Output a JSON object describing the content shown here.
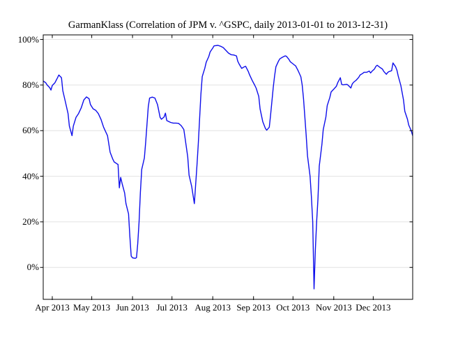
{
  "chart_data": {
    "type": "line",
    "title": "GarmanKlass (Correlation of JPM v. ^GSPC, daily 2013-01-01 to 2013-12-31)",
    "xlabel": "",
    "ylabel": "",
    "ylim": [
      -14,
      102
    ],
    "xlim": [
      "2013-03-25",
      "2013-12-31"
    ],
    "grid": "horizontal",
    "legend": "none",
    "colors": {
      "line": "#0d0deb",
      "grid": "#e2e2e2",
      "frame": "#000000",
      "text": "#000000",
      "background": "#ffffff"
    },
    "y_ticks": [
      {
        "label": "0%",
        "value": 0
      },
      {
        "label": "20%",
        "value": 20
      },
      {
        "label": "40%",
        "value": 40
      },
      {
        "label": "60%",
        "value": 60
      },
      {
        "label": "80%",
        "value": 80
      },
      {
        "label": "100%",
        "value": 100
      }
    ],
    "x_ticks": [
      {
        "label": "Apr 2013",
        "date": "2013-04-01"
      },
      {
        "label": "May 2013",
        "date": "2013-05-01"
      },
      {
        "label": "Jun 2013",
        "date": "2013-06-01"
      },
      {
        "label": "Jul 2013",
        "date": "2013-07-01"
      },
      {
        "label": "Aug 2013",
        "date": "2013-08-01"
      },
      {
        "label": "Sep 2013",
        "date": "2013-09-01"
      },
      {
        "label": "Oct 2013",
        "date": "2013-10-01"
      },
      {
        "label": "Nov 2013",
        "date": "2013-11-01"
      },
      {
        "label": "Dec 2013",
        "date": "2013-12-01"
      }
    ],
    "points": [
      [
        "2013-03-25",
        81.8
      ],
      [
        "2013-03-27",
        81.0
      ],
      [
        "2013-03-28",
        80.1
      ],
      [
        "2013-03-30",
        78.9
      ],
      [
        "2013-03-31",
        77.8
      ],
      [
        "2013-04-01",
        79.8
      ],
      [
        "2013-04-03",
        81.0
      ],
      [
        "2013-04-05",
        83.2
      ],
      [
        "2013-04-06",
        84.4
      ],
      [
        "2013-04-08",
        83.2
      ],
      [
        "2013-04-09",
        77.5
      ],
      [
        "2013-04-11",
        72.5
      ],
      [
        "2013-04-13",
        67.5
      ],
      [
        "2013-04-14",
        62.0
      ],
      [
        "2013-04-16",
        57.8
      ],
      [
        "2013-04-17",
        62.0
      ],
      [
        "2013-04-19",
        65.8
      ],
      [
        "2013-04-21",
        67.5
      ],
      [
        "2013-04-23",
        70.0
      ],
      [
        "2013-04-25",
        73.5
      ],
      [
        "2013-04-27",
        74.8
      ],
      [
        "2013-04-29",
        74.0
      ],
      [
        "2013-04-30",
        71.5
      ],
      [
        "2013-05-02",
        69.6
      ],
      [
        "2013-05-04",
        68.9
      ],
      [
        "2013-05-06",
        67.5
      ],
      [
        "2013-05-08",
        65.0
      ],
      [
        "2013-05-10",
        61.5
      ],
      [
        "2013-05-13",
        57.8
      ],
      [
        "2013-05-15",
        50.5
      ],
      [
        "2013-05-17",
        47.5
      ],
      [
        "2013-05-18",
        46.3
      ],
      [
        "2013-05-20",
        45.5
      ],
      [
        "2013-05-21",
        45.2
      ],
      [
        "2013-05-22",
        34.9
      ],
      [
        "2013-05-23",
        39.5
      ],
      [
        "2013-05-24",
        37.0
      ],
      [
        "2013-05-26",
        32.6
      ],
      [
        "2013-05-27",
        28.0
      ],
      [
        "2013-05-29",
        23.5
      ],
      [
        "2013-05-30",
        13.5
      ],
      [
        "2013-05-31",
        5.0
      ],
      [
        "2013-06-01",
        4.2
      ],
      [
        "2013-06-03",
        4.0
      ],
      [
        "2013-06-04",
        4.3
      ],
      [
        "2013-06-05",
        10.5
      ],
      [
        "2013-06-06",
        20.0
      ],
      [
        "2013-06-07",
        33.0
      ],
      [
        "2013-06-08",
        43.0
      ],
      [
        "2013-06-09",
        45.5
      ],
      [
        "2013-06-10",
        48.0
      ],
      [
        "2013-06-11",
        55.0
      ],
      [
        "2013-06-12",
        63.0
      ],
      [
        "2013-06-13",
        70.5
      ],
      [
        "2013-06-14",
        74.3
      ],
      [
        "2013-06-16",
        74.7
      ],
      [
        "2013-06-18",
        74.3
      ],
      [
        "2013-06-20",
        71.5
      ],
      [
        "2013-06-22",
        65.8
      ],
      [
        "2013-06-23",
        65.0
      ],
      [
        "2013-06-25",
        66.0
      ],
      [
        "2013-06-26",
        67.7
      ],
      [
        "2013-06-27",
        64.4
      ],
      [
        "2013-06-30",
        63.6
      ],
      [
        "2013-07-02",
        63.3
      ],
      [
        "2013-07-04",
        63.3
      ],
      [
        "2013-07-06",
        63.2
      ],
      [
        "2013-07-08",
        62.2
      ],
      [
        "2013-07-10",
        60.5
      ],
      [
        "2013-07-11",
        56.5
      ],
      [
        "2013-07-13",
        48.5
      ],
      [
        "2013-07-14",
        40.5
      ],
      [
        "2013-07-16",
        35.5
      ],
      [
        "2013-07-18",
        28.0
      ],
      [
        "2013-07-19",
        36.5
      ],
      [
        "2013-07-20",
        45.0
      ],
      [
        "2013-07-21",
        54.0
      ],
      [
        "2013-07-22",
        65.0
      ],
      [
        "2013-07-23",
        76.0
      ],
      [
        "2013-07-24",
        83.7
      ],
      [
        "2013-07-26",
        87.5
      ],
      [
        "2013-07-27",
        90.0
      ],
      [
        "2013-07-29",
        92.5
      ],
      [
        "2013-07-30",
        94.5
      ],
      [
        "2013-08-01",
        96.2
      ],
      [
        "2013-08-02",
        97.2
      ],
      [
        "2013-08-05",
        97.4
      ],
      [
        "2013-08-07",
        97.0
      ],
      [
        "2013-08-09",
        96.4
      ],
      [
        "2013-08-11",
        95.2
      ],
      [
        "2013-08-13",
        94.0
      ],
      [
        "2013-08-15",
        93.3
      ],
      [
        "2013-08-17",
        93.2
      ],
      [
        "2013-08-19",
        92.8
      ],
      [
        "2013-08-20",
        90.5
      ],
      [
        "2013-08-21",
        89.3
      ],
      [
        "2013-08-23",
        87.3
      ],
      [
        "2013-08-25",
        88.0
      ],
      [
        "2013-08-26",
        88.2
      ],
      [
        "2013-08-28",
        86.0
      ],
      [
        "2013-08-29",
        84.5
      ],
      [
        "2013-08-31",
        82.0
      ],
      [
        "2013-09-02",
        79.8
      ],
      [
        "2013-09-03",
        78.6
      ],
      [
        "2013-09-05",
        75.0
      ],
      [
        "2013-09-06",
        69.5
      ],
      [
        "2013-09-08",
        64.0
      ],
      [
        "2013-09-10",
        61.0
      ],
      [
        "2013-09-11",
        60.2
      ],
      [
        "2013-09-13",
        61.5
      ],
      [
        "2013-09-14",
        67.0
      ],
      [
        "2013-09-15",
        73.0
      ],
      [
        "2013-09-16",
        79.0
      ],
      [
        "2013-09-17",
        84.0
      ],
      [
        "2013-09-18",
        88.0
      ],
      [
        "2013-09-20",
        90.5
      ],
      [
        "2013-09-21",
        91.5
      ],
      [
        "2013-09-23",
        92.2
      ],
      [
        "2013-09-25",
        92.8
      ],
      [
        "2013-09-26",
        92.6
      ],
      [
        "2013-09-28",
        91.2
      ],
      [
        "2013-09-29",
        90.2
      ],
      [
        "2013-10-01",
        89.3
      ],
      [
        "2013-10-02",
        88.8
      ],
      [
        "2013-10-03",
        88.4
      ],
      [
        "2013-10-05",
        86.2
      ],
      [
        "2013-10-07",
        83.6
      ],
      [
        "2013-10-08",
        80.0
      ],
      [
        "2013-10-09",
        74.0
      ],
      [
        "2013-10-10",
        66.0
      ],
      [
        "2013-10-11",
        58.0
      ],
      [
        "2013-10-12",
        49.0
      ],
      [
        "2013-10-14",
        40.0
      ],
      [
        "2013-10-15",
        31.0
      ],
      [
        "2013-10-16",
        20.0
      ],
      [
        "2013-10-17",
        -9.4
      ],
      [
        "2013-10-18",
        8.0
      ],
      [
        "2013-10-19",
        20.5
      ],
      [
        "2013-10-20",
        30.0
      ],
      [
        "2013-10-21",
        44.5
      ],
      [
        "2013-10-23",
        54.0
      ],
      [
        "2013-10-24",
        60.5
      ],
      [
        "2013-10-26",
        66.0
      ],
      [
        "2013-10-27",
        71.0
      ],
      [
        "2013-10-29",
        74.5
      ],
      [
        "2013-10-30",
        77.0
      ],
      [
        "2013-11-01",
        78.2
      ],
      [
        "2013-11-03",
        79.5
      ],
      [
        "2013-11-04",
        81.0
      ],
      [
        "2013-11-06",
        83.2
      ],
      [
        "2013-11-07",
        80.3
      ],
      [
        "2013-11-08",
        80.1
      ],
      [
        "2013-11-11",
        80.3
      ],
      [
        "2013-11-12",
        79.9
      ],
      [
        "2013-11-14",
        78.7
      ],
      [
        "2013-11-15",
        80.4
      ],
      [
        "2013-11-16",
        81.2
      ],
      [
        "2013-11-18",
        82.1
      ],
      [
        "2013-11-20",
        83.4
      ],
      [
        "2013-11-21",
        84.4
      ],
      [
        "2013-11-23",
        85.1
      ],
      [
        "2013-11-24",
        85.6
      ],
      [
        "2013-11-26",
        85.6
      ],
      [
        "2013-11-28",
        86.1
      ],
      [
        "2013-11-29",
        85.3
      ],
      [
        "2013-11-30",
        86.0
      ],
      [
        "2013-12-02",
        87.1
      ],
      [
        "2013-12-03",
        88.2
      ],
      [
        "2013-12-04",
        88.7
      ],
      [
        "2013-12-06",
        87.8
      ],
      [
        "2013-12-08",
        87.0
      ],
      [
        "2013-12-09",
        86.0
      ],
      [
        "2013-12-11",
        84.7
      ],
      [
        "2013-12-12",
        85.5
      ],
      [
        "2013-12-13",
        85.9
      ],
      [
        "2013-12-15",
        86.3
      ],
      [
        "2013-12-16",
        89.7
      ],
      [
        "2013-12-18",
        88.0
      ],
      [
        "2013-12-19",
        86.5
      ],
      [
        "2013-12-20",
        84.0
      ],
      [
        "2013-12-22",
        79.8
      ],
      [
        "2013-12-24",
        73.5
      ],
      [
        "2013-12-25",
        68.5
      ],
      [
        "2013-12-27",
        65.0
      ],
      [
        "2013-12-28",
        62.5
      ],
      [
        "2013-12-30",
        59.8
      ],
      [
        "2013-12-31",
        57.8
      ]
    ]
  }
}
